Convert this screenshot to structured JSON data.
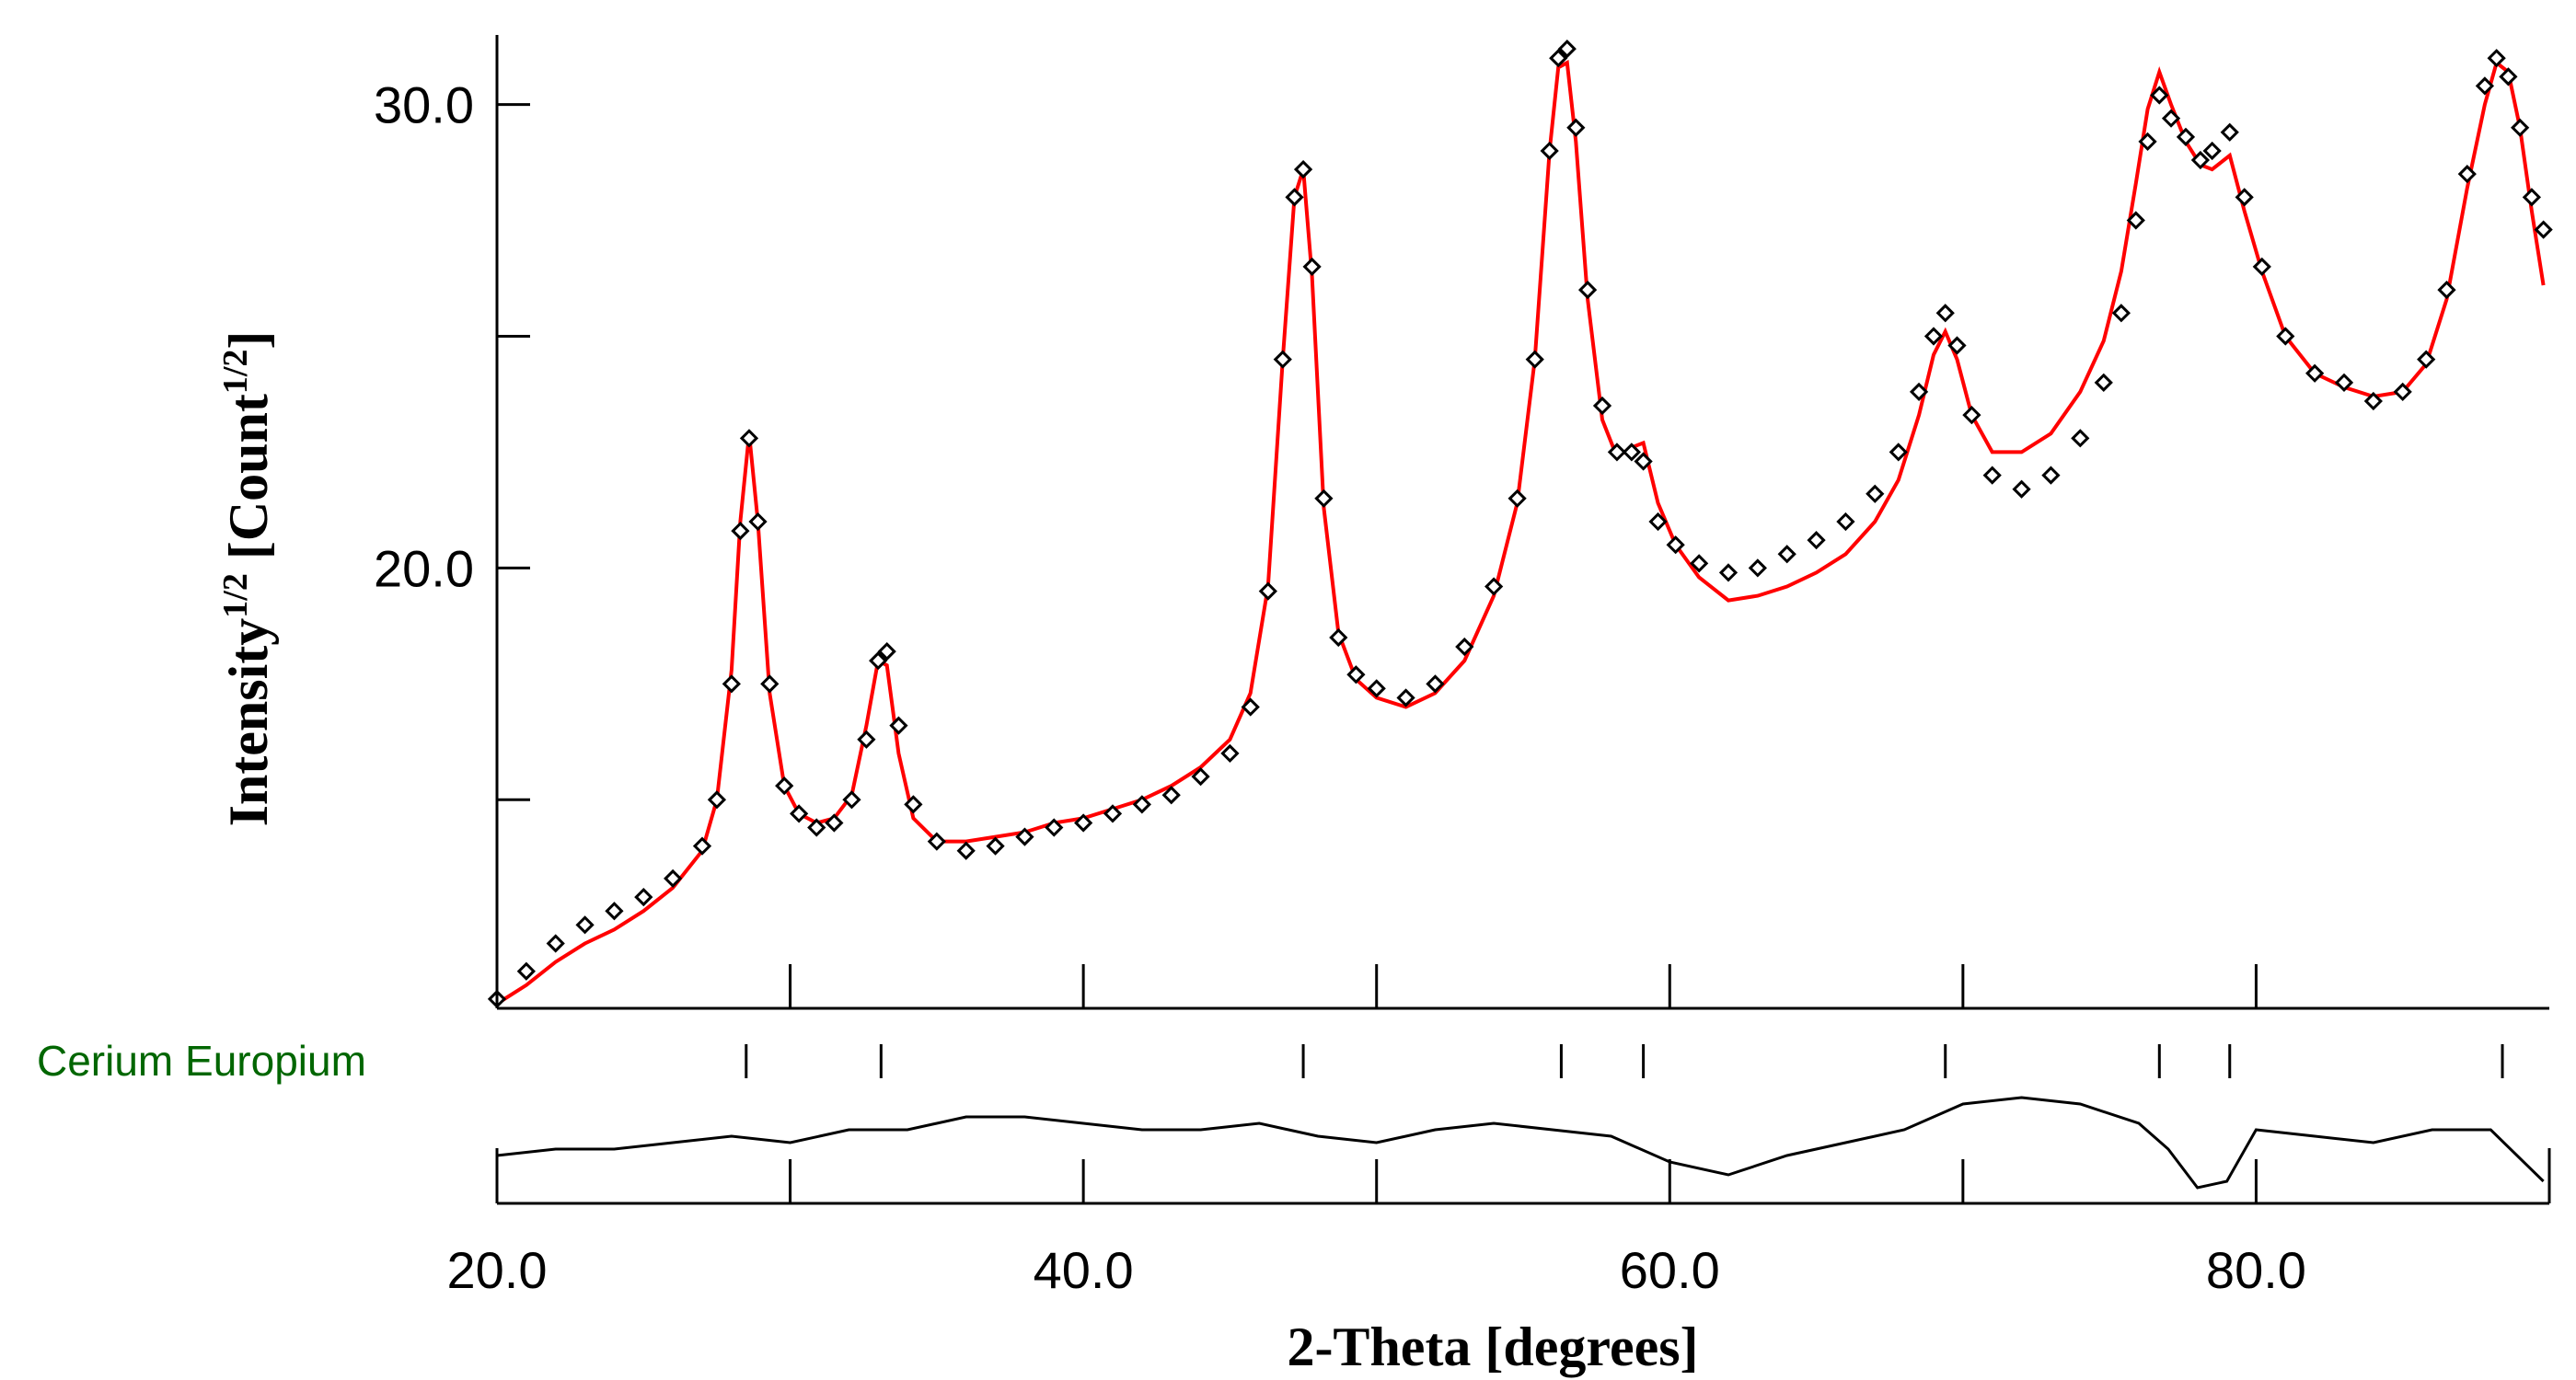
{
  "chart_data": {
    "type": "scatter",
    "title": "",
    "xlabel": "2-Theta [degrees]",
    "ylabel": {
      "main": "Intensity",
      "exp": "1/2",
      "unit_open": " [Count",
      "unit_exp": "1/2",
      "unit_close": "]"
    },
    "xlim": [
      20.0,
      90.0
    ],
    "ylim": [
      10.5,
      31.5
    ],
    "x_tick_labels": [
      "20.0",
      "40.0",
      "60.0",
      "80.0"
    ],
    "x_tick_values": [
      20,
      40,
      60,
      80
    ],
    "x_minor_ticks": [
      30,
      50,
      70
    ],
    "y_tick_labels": [
      "20.0",
      "30.0"
    ],
    "y_tick_values": [
      20,
      30
    ],
    "y_minor_ticks": [
      15,
      25
    ],
    "phase": {
      "name": "Cerium Europium",
      "color": "#006600",
      "reflections": [
        28.5,
        33.1,
        47.5,
        56.3,
        59.1,
        69.4,
        76.7,
        79.1,
        88.4
      ]
    },
    "series": [
      {
        "kind": "observed",
        "marker": "diamond",
        "color": "#000000",
        "x": [
          20.0,
          21.0,
          22.0,
          23.0,
          24.0,
          25.0,
          26.0,
          27.0,
          27.5,
          28.0,
          28.3,
          28.6,
          28.9,
          29.3,
          29.8,
          30.3,
          30.9,
          31.5,
          32.1,
          32.6,
          33.0,
          33.3,
          33.7,
          34.2,
          35.0,
          36.0,
          37.0,
          38.0,
          39.0,
          40.0,
          41.0,
          42.0,
          43.0,
          44.0,
          45.0,
          45.7,
          46.3,
          46.8,
          47.2,
          47.5,
          47.8,
          48.2,
          48.7,
          49.3,
          50.0,
          51.0,
          52.0,
          53.0,
          54.0,
          54.8,
          55.4,
          55.9,
          56.2,
          56.5,
          56.8,
          57.2,
          57.7,
          58.2,
          58.7,
          59.1,
          59.6,
          60.2,
          61.0,
          62.0,
          63.0,
          64.0,
          65.0,
          66.0,
          67.0,
          67.8,
          68.5,
          69.0,
          69.4,
          69.8,
          70.3,
          71.0,
          72.0,
          73.0,
          74.0,
          74.8,
          75.4,
          75.9,
          76.3,
          76.7,
          77.1,
          77.6,
          78.1,
          78.5,
          79.1,
          79.6,
          80.2,
          81.0,
          82.0,
          83.0,
          84.0,
          85.0,
          85.8,
          86.5,
          87.2,
          87.8,
          88.2,
          88.6,
          89.0,
          89.4,
          89.8
        ],
        "y": [
          10.7,
          11.3,
          11.9,
          12.3,
          12.6,
          12.9,
          13.3,
          14.0,
          15.0,
          17.5,
          20.8,
          22.8,
          21.0,
          17.5,
          15.3,
          14.7,
          14.4,
          14.5,
          15.0,
          16.3,
          18.0,
          18.2,
          16.6,
          14.9,
          14.1,
          13.9,
          14.0,
          14.2,
          14.4,
          14.5,
          14.7,
          14.9,
          15.1,
          15.5,
          16.0,
          17.0,
          19.5,
          24.5,
          28.0,
          28.6,
          26.5,
          21.5,
          18.5,
          17.7,
          17.4,
          17.2,
          17.5,
          18.3,
          19.6,
          21.5,
          24.5,
          29.0,
          31.0,
          31.2,
          29.5,
          26.0,
          23.5,
          22.5,
          22.5,
          22.3,
          21.0,
          20.5,
          20.1,
          19.9,
          20.0,
          20.3,
          20.6,
          21.0,
          21.6,
          22.5,
          23.8,
          25.0,
          25.5,
          24.8,
          23.3,
          22.0,
          21.7,
          22.0,
          22.8,
          24.0,
          25.5,
          27.5,
          29.2,
          30.2,
          29.7,
          29.3,
          28.8,
          29.0,
          29.4,
          28.0,
          26.5,
          25.0,
          24.2,
          24.0,
          23.6,
          23.8,
          24.5,
          26.0,
          28.5,
          30.4,
          31.0,
          30.6,
          29.5,
          28.0,
          27.3
        ]
      },
      {
        "kind": "calculated",
        "color": "#ff0000",
        "x": [
          20.0,
          21.0,
          22.0,
          23.0,
          24.0,
          25.0,
          26.0,
          27.0,
          27.5,
          28.0,
          28.3,
          28.6,
          28.9,
          29.3,
          29.8,
          30.3,
          30.9,
          31.5,
          32.1,
          32.6,
          33.0,
          33.3,
          33.7,
          34.2,
          35.0,
          36.0,
          37.0,
          38.0,
          39.0,
          40.0,
          41.0,
          42.0,
          43.0,
          44.0,
          45.0,
          45.7,
          46.3,
          46.8,
          47.2,
          47.5,
          47.8,
          48.2,
          48.7,
          49.3,
          50.0,
          51.0,
          52.0,
          53.0,
          54.0,
          54.8,
          55.4,
          55.9,
          56.2,
          56.5,
          56.8,
          57.2,
          57.7,
          58.2,
          58.7,
          59.1,
          59.6,
          60.2,
          61.0,
          62.0,
          63.0,
          64.0,
          65.0,
          66.0,
          67.0,
          67.8,
          68.5,
          69.0,
          69.4,
          69.8,
          70.3,
          71.0,
          72.0,
          73.0,
          74.0,
          74.8,
          75.4,
          75.9,
          76.3,
          76.7,
          77.1,
          77.6,
          78.1,
          78.5,
          79.1,
          79.6,
          80.2,
          81.0,
          82.0,
          83.0,
          84.0,
          85.0,
          85.8,
          86.5,
          87.2,
          87.8,
          88.2,
          88.6,
          89.0,
          89.4,
          89.8
        ],
        "y": [
          10.6,
          11.0,
          11.5,
          11.9,
          12.2,
          12.6,
          13.1,
          13.9,
          15.0,
          17.8,
          21.0,
          22.9,
          21.0,
          17.3,
          15.3,
          14.7,
          14.5,
          14.6,
          15.1,
          16.6,
          18.0,
          17.9,
          16.0,
          14.6,
          14.1,
          14.1,
          14.2,
          14.3,
          14.5,
          14.6,
          14.8,
          15.0,
          15.3,
          15.7,
          16.3,
          17.3,
          19.6,
          24.5,
          28.0,
          28.6,
          26.3,
          21.3,
          18.6,
          17.6,
          17.2,
          17.0,
          17.3,
          18.0,
          19.4,
          21.4,
          24.5,
          29.0,
          30.8,
          30.9,
          29.2,
          25.8,
          23.2,
          22.4,
          22.6,
          22.7,
          21.4,
          20.5,
          19.8,
          19.3,
          19.4,
          19.6,
          19.9,
          20.3,
          21.0,
          21.9,
          23.3,
          24.6,
          25.1,
          24.5,
          23.3,
          22.5,
          22.5,
          22.9,
          23.8,
          24.9,
          26.4,
          28.3,
          29.9,
          30.7,
          30.0,
          29.2,
          28.7,
          28.6,
          28.9,
          27.7,
          26.4,
          25.0,
          24.2,
          23.9,
          23.7,
          23.8,
          24.4,
          25.8,
          28.2,
          30.0,
          30.9,
          30.7,
          29.5,
          27.7,
          26.1
        ]
      },
      {
        "kind": "difference",
        "color": "#000000",
        "x": [
          20.0,
          22.0,
          24.0,
          26.0,
          28.0,
          30.0,
          32.0,
          34.0,
          36.0,
          38.0,
          40.0,
          42.0,
          44.0,
          46.0,
          48.0,
          50.0,
          52.0,
          54.0,
          56.0,
          58.0,
          60.0,
          62.0,
          64.0,
          66.0,
          68.0,
          70.0,
          72.0,
          74.0,
          76.0,
          77.0,
          78.0,
          79.0,
          80.0,
          82.0,
          84.0,
          86.0,
          88.0,
          89.8
        ],
        "y": [
          0.1,
          0.2,
          0.2,
          0.3,
          0.4,
          0.3,
          0.5,
          0.5,
          0.7,
          0.7,
          0.6,
          0.5,
          0.5,
          0.6,
          0.4,
          0.3,
          0.5,
          0.6,
          0.5,
          0.4,
          0.0,
          -0.2,
          0.1,
          0.3,
          0.5,
          0.9,
          1.0,
          0.9,
          0.6,
          0.2,
          -0.4,
          -0.3,
          0.5,
          0.4,
          0.3,
          0.5,
          0.5,
          -0.3
        ]
      }
    ]
  }
}
